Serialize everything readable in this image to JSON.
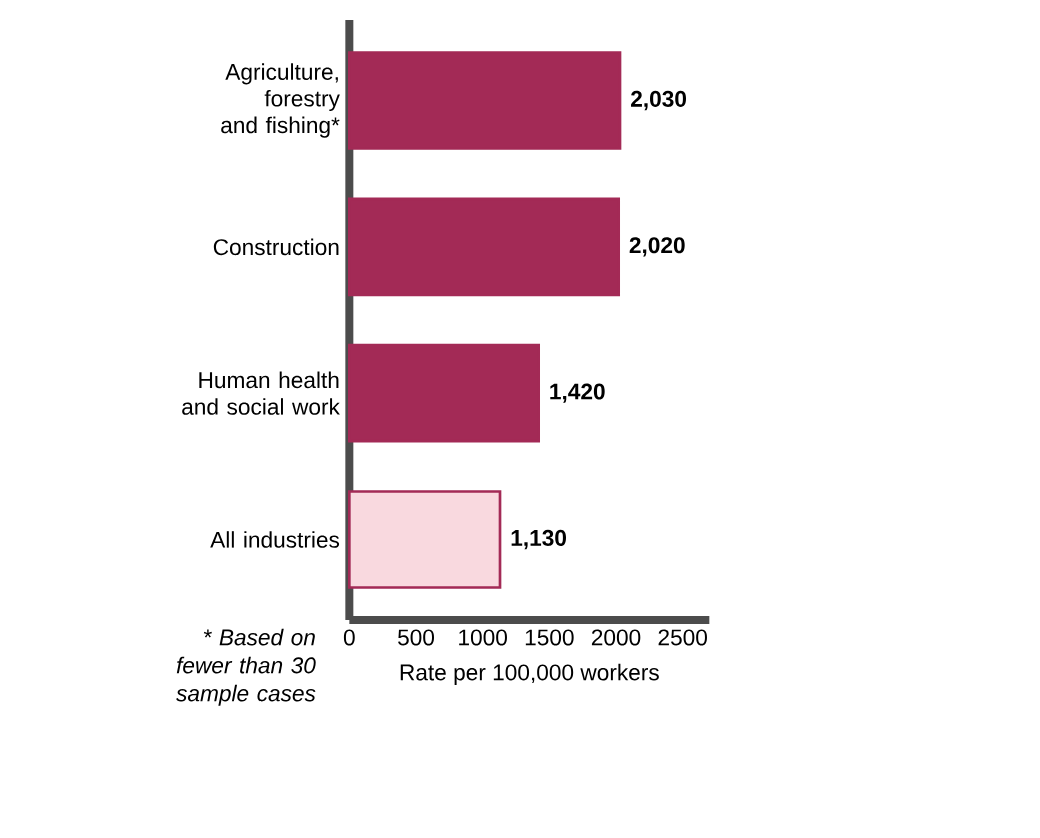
{
  "chart_data": {
    "type": "bar",
    "orientation": "horizontal",
    "categories": [
      "Agriculture, forestry and fishing*",
      "Construction",
      "Human health and social work",
      "All industries"
    ],
    "values": [
      2030,
      2020,
      1420,
      1130
    ],
    "colors": [
      "#a32a56",
      "#a32a56",
      "#a32a56",
      "#f9d9df"
    ],
    "value_labels": [
      "2,030",
      "2,020",
      "1,420",
      "1,130"
    ],
    "xlim": [
      0,
      2700
    ],
    "xticks": [
      0,
      500,
      1000,
      1500,
      2000,
      2500
    ],
    "xlabel": "Rate per 100,000 workers",
    "annotations": [
      "* Based on fewer than 30 sample cases"
    ]
  }
}
